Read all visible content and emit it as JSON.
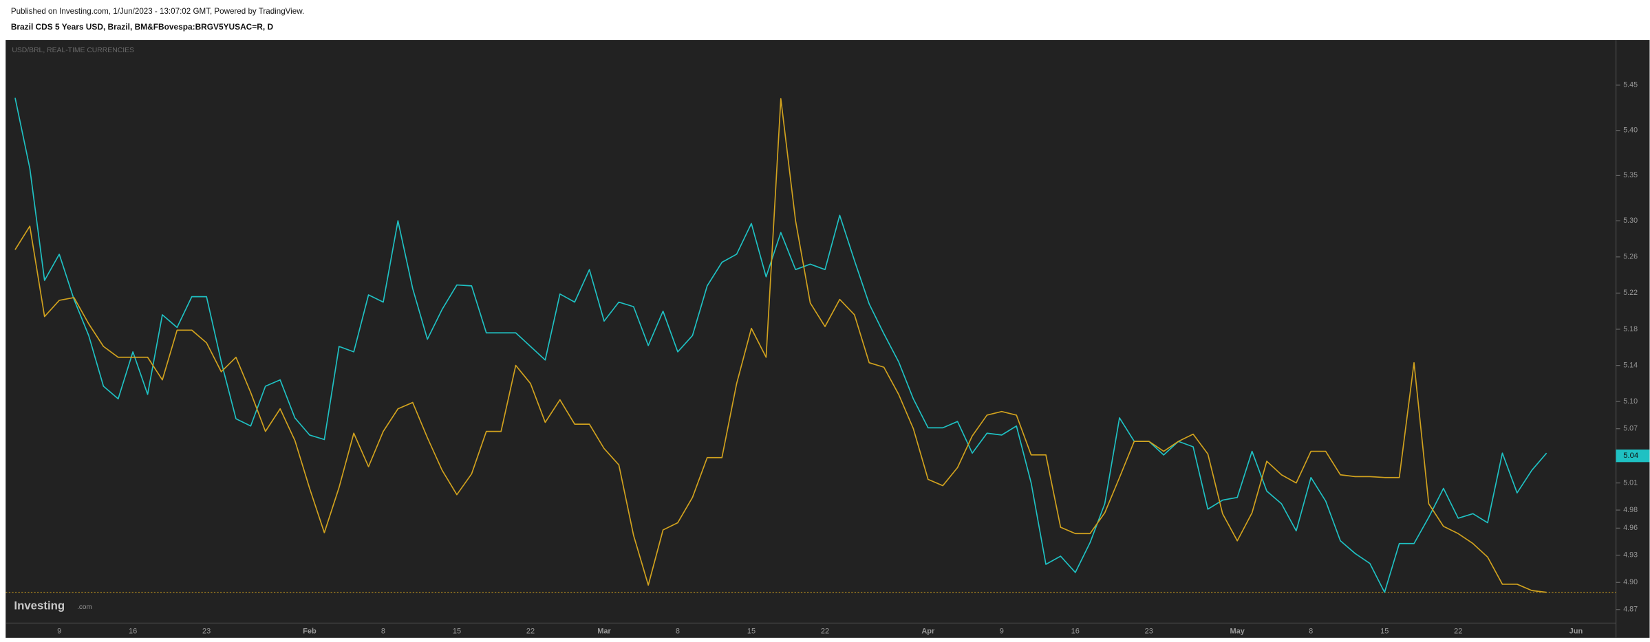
{
  "header": {
    "published": "Published on Investing.com, 1/Jun/2023 - 13:07:02 GMT, Powered by TradingView.",
    "symbol": "Brazil CDS 5 Years USD, Brazil, BM&FBovespa:BRGV5YUSAC=R, D"
  },
  "watermark": {
    "brand": "Investing",
    "suffix": ".com"
  },
  "chart_data": {
    "type": "line",
    "grid": false,
    "categories": [
      null,
      null,
      null,
      "9",
      null,
      null,
      null,
      null,
      "16",
      null,
      null,
      null,
      null,
      "23",
      null,
      null,
      null,
      null,
      null,
      null,
      "Feb",
      null,
      null,
      null,
      null,
      "8",
      null,
      null,
      null,
      null,
      "15",
      null,
      null,
      null,
      null,
      "22",
      null,
      null,
      null,
      null,
      "Mar",
      null,
      null,
      null,
      null,
      "8",
      null,
      null,
      null,
      null,
      "15",
      null,
      null,
      null,
      null,
      "22",
      null,
      null,
      null,
      null,
      null,
      null,
      "Apr",
      null,
      null,
      null,
      null,
      "9",
      null,
      null,
      null,
      null,
      "16",
      null,
      null,
      null,
      null,
      "23",
      null,
      null,
      null,
      null,
      null,
      "May",
      null,
      null,
      null,
      null,
      "8",
      null,
      null,
      null,
      null,
      "15",
      null,
      null,
      null,
      null,
      "22",
      null,
      null,
      null,
      null,
      null,
      null,
      null,
      "Jun"
    ],
    "series": [
      {
        "name": "USD/BRL, REAL-TIME CURRENCIES",
        "color": "#1fc1c3",
        "values": [
          5.436,
          5.358,
          5.234,
          5.263,
          5.213,
          5.173,
          5.117,
          5.103,
          5.155,
          5.108,
          5.196,
          5.182,
          5.216,
          5.216,
          5.144,
          5.081,
          5.073,
          5.117,
          5.124,
          5.082,
          5.063,
          5.058,
          5.161,
          5.155,
          5.218,
          5.21,
          5.3,
          5.225,
          5.169,
          5.202,
          5.229,
          5.228,
          5.176,
          5.176,
          5.176,
          5.161,
          5.146,
          5.219,
          5.21,
          5.246,
          5.189,
          5.21,
          5.205,
          5.162,
          5.2,
          5.155,
          5.173,
          5.228,
          5.254,
          5.263,
          5.297,
          5.238,
          5.287,
          5.246,
          5.252,
          5.246,
          5.306,
          5.256,
          5.208,
          5.175,
          5.144,
          5.103,
          5.071,
          5.071,
          5.078,
          5.043,
          5.065,
          5.063,
          5.073,
          5.01,
          4.92,
          4.929,
          4.911,
          4.944,
          4.987,
          5.082,
          5.056,
          5.056,
          5.041,
          5.056,
          5.05,
          4.981,
          4.991,
          4.994,
          5.045,
          5.001,
          4.987,
          4.957,
          5.016,
          4.99,
          4.946,
          4.932,
          4.921,
          4.889,
          4.943,
          4.943,
          4.972,
          5.004,
          4.971,
          4.976,
          4.966,
          5.043,
          4.999,
          5.024,
          5.043,
          null,
          null
        ]
      },
      {
        "color": "#d1a21e",
        "values": [
          5.268,
          5.294,
          5.194,
          5.212,
          5.215,
          5.186,
          5.161,
          5.149,
          5.149,
          5.149,
          5.124,
          5.179,
          5.179,
          5.165,
          5.133,
          5.149,
          5.11,
          5.067,
          5.092,
          5.057,
          5.004,
          4.955,
          5.005,
          5.065,
          5.028,
          5.067,
          5.092,
          5.099,
          5.06,
          5.024,
          4.997,
          5.02,
          5.067,
          5.067,
          5.14,
          5.12,
          5.077,
          5.102,
          5.075,
          5.075,
          5.048,
          5.03,
          4.952,
          4.897,
          4.958,
          4.966,
          4.994,
          5.038,
          5.038,
          5.12,
          5.181,
          5.149,
          5.435,
          5.3,
          5.209,
          5.183,
          5.213,
          5.196,
          5.143,
          5.138,
          5.108,
          5.07,
          5.014,
          5.007,
          5.027,
          5.062,
          5.085,
          5.089,
          5.085,
          5.041,
          5.041,
          4.961,
          4.954,
          4.954,
          4.977,
          5.016,
          5.056,
          5.056,
          5.045,
          5.056,
          5.064,
          5.042,
          4.976,
          4.946,
          4.977,
          5.034,
          5.019,
          5.01,
          5.045,
          5.045,
          5.019,
          5.017,
          5.017,
          5.016,
          5.016,
          5.143,
          4.987,
          4.962,
          4.954,
          4.943,
          4.928,
          4.898,
          4.898,
          4.891,
          4.889,
          null,
          null
        ]
      }
    ],
    "ylim": [
      4.855,
      5.5
    ],
    "yticks": [
      5.45,
      {
        "value": 5.4,
        "label": "5.40"
      },
      5.35,
      {
        "value": 5.3,
        "label": "5.30"
      },
      5.26,
      5.22,
      5.18,
      5.14,
      {
        "value": 5.1,
        "label": "5.10"
      },
      5.07,
      5.01,
      4.98,
      4.96,
      4.93,
      {
        "value": 4.9,
        "label": "4.90"
      },
      4.87
    ],
    "price_label": 5.04
  }
}
